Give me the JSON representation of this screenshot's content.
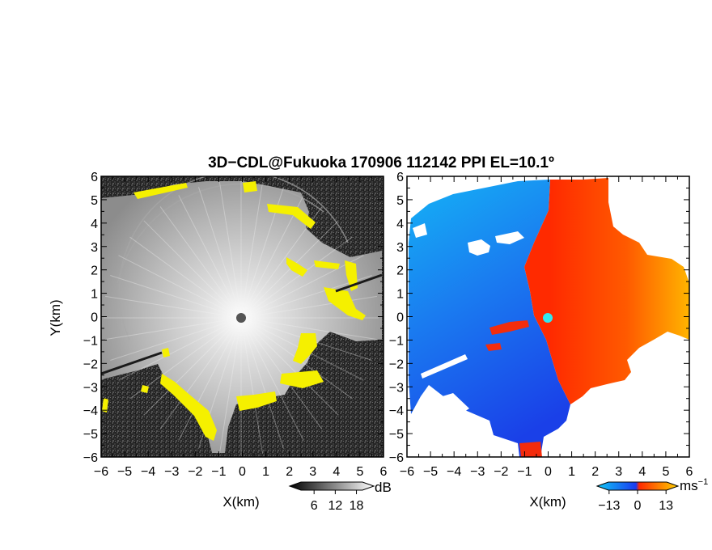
{
  "chart_data": {
    "title": "3D−CDL@Fukuoka 170906 112142 PPI EL=10.1º",
    "panels": [
      {
        "type": "heatmap",
        "name": "reflectivity",
        "xlabel": "X(km)",
        "ylabel": "Y(km)",
        "xlim": [
          -6,
          6
        ],
        "ylim": [
          -6,
          6
        ],
        "xticks": [
          "−6",
          "−5",
          "−4",
          "−3",
          "−2",
          "−1",
          "0",
          "1",
          "2",
          "3",
          "4",
          "5",
          "6"
        ],
        "yticks": [
          "−6",
          "−5",
          "−4",
          "−3",
          "−2",
          "−1",
          "0",
          "1",
          "2",
          "3",
          "4",
          "5",
          "6"
        ],
        "colorbar": {
          "unit": "dB",
          "ticks": [
            "6",
            "12",
            "18"
          ],
          "values": [
            6,
            12,
            18
          ],
          "range": [
            0,
            22
          ]
        },
        "colors": {
          "background_noise": "#2b2b2b",
          "echo": "#b4b4b4",
          "flagged": "#f5f000",
          "radar_site": "#555555"
        }
      },
      {
        "type": "heatmap",
        "name": "doppler_velocity",
        "xlabel": "X(km)",
        "xlim": [
          -6,
          6
        ],
        "ylim": [
          -6,
          6
        ],
        "xticks": [
          "−6",
          "−5",
          "−4",
          "−3",
          "−2",
          "−1",
          "0",
          "1",
          "2",
          "3",
          "4",
          "5",
          "6"
        ],
        "yticks": [
          "−6",
          "−5",
          "−4",
          "−3",
          "−2",
          "−1",
          "0",
          "1",
          "2",
          "3",
          "4",
          "5",
          "6"
        ],
        "colorbar": {
          "unit": "ms",
          "unit_exponent": "−1",
          "ticks": [
            "−13",
            "0",
            "13"
          ],
          "values": [
            -13,
            0,
            13
          ],
          "range": [
            -17,
            17
          ]
        },
        "colors": {
          "approaching": "#1e5ff0",
          "approaching_far": "#19a0f0",
          "receding": "#ff3000",
          "receding_far": "#ffb000",
          "radar_site": "#30e8f0"
        }
      }
    ]
  }
}
